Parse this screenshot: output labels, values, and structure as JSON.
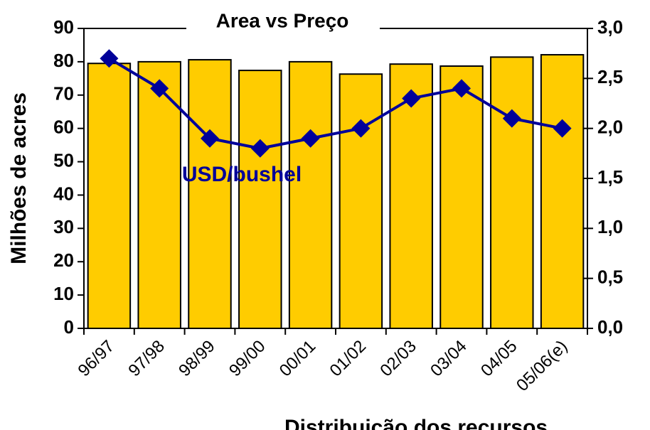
{
  "chart_data": {
    "type": "bar_line",
    "title": "Area vs Preço",
    "y_label": "Milhões de acres",
    "x_label": "Distribuição dos recursos",
    "annotation": "USD/bushel",
    "categories": [
      "96/97",
      "97/98",
      "98/99",
      "99/00",
      "00/01",
      "01/02",
      "02/03",
      "03/04",
      "04/05",
      "05/06(e)"
    ],
    "series": [
      {
        "name": "Area",
        "color": "#ffcc00",
        "values": [
          79.5,
          80,
          80.6,
          77.4,
          80,
          76.3,
          79.3,
          78.7,
          81.4,
          82.1
        ]
      },
      {
        "name": "USD/bushel",
        "color": "#000099",
        "axis": "y2",
        "values": [
          2.7,
          2.4,
          1.9,
          1.8,
          1.9,
          2.0,
          2.3,
          2.4,
          2.1,
          2.0
        ]
      }
    ],
    "ylim": [
      0,
      90
    ],
    "yticks": [
      0,
      10,
      20,
      30,
      40,
      50,
      60,
      70,
      80,
      90
    ],
    "y2lim": [
      0,
      3
    ],
    "y2ticks": [
      {
        "value": 0,
        "label": "0,0"
      },
      {
        "value": 0.5,
        "label": "0,5"
      },
      {
        "value": 1,
        "label": "1,0"
      },
      {
        "value": 1.5,
        "label": "1,5"
      },
      {
        "value": 2,
        "label": "2,0"
      },
      {
        "value": 2.5,
        "label": "2,5"
      },
      {
        "value": 3,
        "label": "3,0"
      }
    ]
  }
}
